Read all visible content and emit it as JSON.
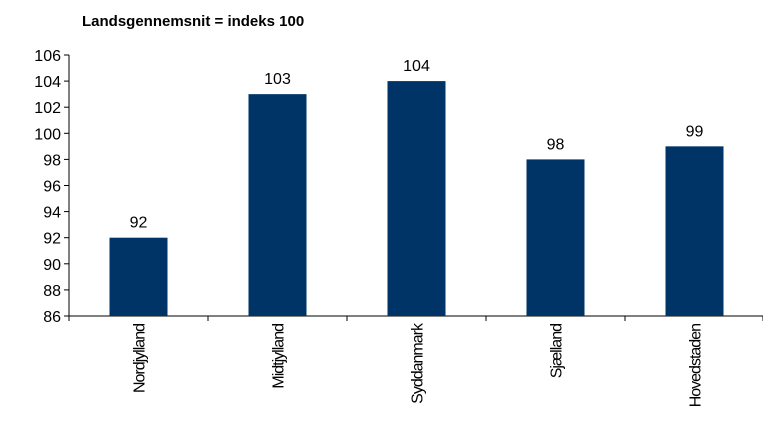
{
  "chart_data": {
    "type": "bar",
    "title": "Landsgennemsnit = indeks 100",
    "categories": [
      "Nordjylland",
      "Midtjylland",
      "Syddanmark",
      "Sjælland",
      "Hovedstaden"
    ],
    "values": [
      92,
      103,
      104,
      98,
      99
    ],
    "color": "#003366",
    "ylim": [
      86,
      106
    ],
    "yticks": [
      86,
      88,
      90,
      92,
      94,
      96,
      98,
      100,
      102,
      104,
      106
    ],
    "grid": false
  }
}
